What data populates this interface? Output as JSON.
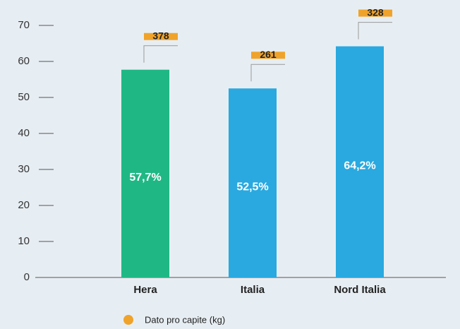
{
  "chart_data": {
    "type": "bar",
    "categories": [
      "Hera",
      "Italia",
      "Nord Italia"
    ],
    "values": [
      57.7,
      52.5,
      64.2
    ],
    "value_labels": [
      "57,7%",
      "52,5%",
      "64,2%"
    ],
    "colors": [
      "#1fb885",
      "#29a9e0",
      "#29a9e0"
    ],
    "ylim": [
      0,
      70
    ],
    "yticks": [
      0,
      10,
      20,
      30,
      40,
      50,
      60,
      70
    ],
    "series": [
      {
        "name": "Dato pro capite (kg)",
        "color": "#f0a32a",
        "values": [
          378,
          261,
          328
        ]
      }
    ]
  }
}
